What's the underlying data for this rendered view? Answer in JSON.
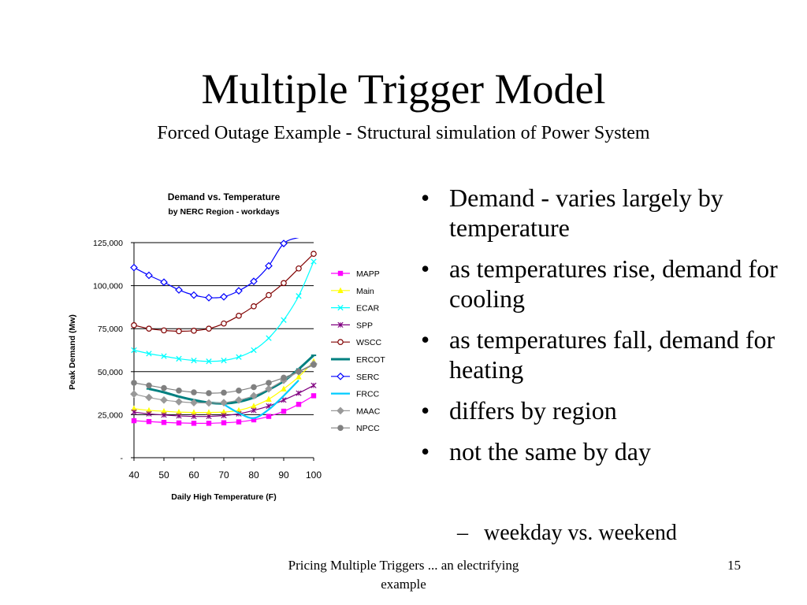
{
  "slide": {
    "title": "Multiple Trigger Model",
    "subtitle": "Forced Outage Example - Structural simulation of Power System",
    "bullets": [
      "Demand  - varies largely by temperature",
      "as temperatures rise, demand for cooling",
      "as temperatures fall, demand for heating",
      "differs by region",
      "not the same by day"
    ],
    "sub_bullet": "weekday vs. weekend",
    "footer": "Pricing Multiple Triggers ... an electrifying example",
    "page_number": "15"
  },
  "chart_data": {
    "type": "line",
    "title": "Demand vs. Temperature",
    "subtitle": "by NERC Region - workdays",
    "xlabel": "Daily High Temperature (F)",
    "ylabel": "Peak Demand (Mw)",
    "xlim": [
      40,
      100
    ],
    "ylim": [
      0,
      125000
    ],
    "x_ticks": [
      "40",
      "50",
      "60",
      "70",
      "80",
      "90",
      "100"
    ],
    "y_ticks": [
      "-",
      "25,000",
      "50,000",
      "75,000",
      "100,000",
      "125,000"
    ],
    "y_tick_values": [
      0,
      25000,
      50000,
      75000,
      100000,
      125000
    ],
    "grid": "horizontal",
    "legend_position": "right",
    "series": [
      {
        "name": "MAPP",
        "color": "#ff00ff",
        "marker": "square",
        "x": [
          40,
          45,
          50,
          55,
          60,
          65,
          70,
          75,
          80,
          85,
          90,
          95,
          100
        ],
        "y": [
          21500,
          21000,
          20500,
          20200,
          20000,
          20000,
          20300,
          20800,
          22000,
          24000,
          27000,
          31000,
          36000
        ]
      },
      {
        "name": "Main",
        "color": "#ffff00",
        "marker": "triangle",
        "x": [
          40,
          45,
          50,
          55,
          60,
          65,
          70,
          75,
          80,
          85,
          90,
          95,
          100
        ],
        "y": [
          28500,
          27500,
          27000,
          26500,
          26300,
          26300,
          26500,
          27500,
          30000,
          34000,
          40000,
          47000,
          56000
        ]
      },
      {
        "name": "ECAR",
        "color": "#00ffff",
        "marker": "x",
        "x": [
          40,
          45,
          50,
          55,
          60,
          65,
          70,
          75,
          80,
          85,
          90,
          95,
          100
        ],
        "y": [
          62500,
          60500,
          59000,
          57500,
          56500,
          56000,
          56500,
          58500,
          62500,
          69500,
          80000,
          94000,
          114000
        ]
      },
      {
        "name": "SPP",
        "color": "#800080",
        "marker": "star",
        "x": [
          40,
          45,
          50,
          55,
          60,
          65,
          70,
          75,
          80,
          85,
          90,
          95,
          100
        ],
        "y": [
          26500,
          25500,
          24800,
          24300,
          24000,
          24000,
          24500,
          25500,
          27500,
          30000,
          33500,
          37500,
          42000
        ]
      },
      {
        "name": "WSCC",
        "color": "#800000",
        "marker": "circle",
        "x": [
          40,
          45,
          50,
          55,
          60,
          65,
          70,
          75,
          80,
          85,
          90,
          95,
          100
        ],
        "y": [
          77000,
          75000,
          74000,
          73500,
          73800,
          75000,
          78000,
          82500,
          88000,
          94500,
          101500,
          110000,
          118500
        ]
      },
      {
        "name": "ERCOT",
        "color": "#008080",
        "marker": "dash",
        "x": [
          45,
          50,
          55,
          60,
          65,
          70,
          75,
          80,
          85,
          90,
          95,
          100
        ],
        "y": [
          40000,
          38000,
          35500,
          33500,
          32000,
          31500,
          32500,
          35000,
          39500,
          44500,
          51500,
          59500
        ]
      },
      {
        "name": "SERC",
        "color": "#0000ff",
        "marker": "diamond",
        "x": [
          40,
          45,
          50,
          55,
          60,
          65,
          70,
          75,
          80,
          85,
          90,
          95
        ],
        "y": [
          110500,
          106000,
          102000,
          97500,
          94500,
          93000,
          93500,
          97000,
          102500,
          111500,
          124500,
          128000
        ]
      },
      {
        "name": "FRCC",
        "color": "#00ccff",
        "marker": "line",
        "x": [
          70,
          75,
          80,
          85,
          90,
          95
        ],
        "y": [
          31000,
          26000,
          23000,
          28000,
          36000,
          45000
        ]
      },
      {
        "name": "MAAC",
        "color": "#999999",
        "marker": "diamond",
        "x": [
          40,
          45,
          50,
          55,
          60,
          65,
          70,
          75,
          80,
          85,
          90,
          95,
          100
        ],
        "y": [
          37000,
          35000,
          33500,
          32500,
          32000,
          31800,
          32000,
          33500,
          36000,
          40000,
          45000,
          50000,
          54500
        ]
      },
      {
        "name": "NPCC",
        "color": "#808080",
        "marker": "circle",
        "x": [
          40,
          45,
          50,
          55,
          60,
          65,
          70,
          75,
          80,
          85,
          90,
          95,
          100
        ],
        "y": [
          43500,
          42000,
          40500,
          39000,
          38000,
          37500,
          37800,
          39000,
          41000,
          43500,
          46500,
          50000,
          54000
        ]
      }
    ]
  }
}
